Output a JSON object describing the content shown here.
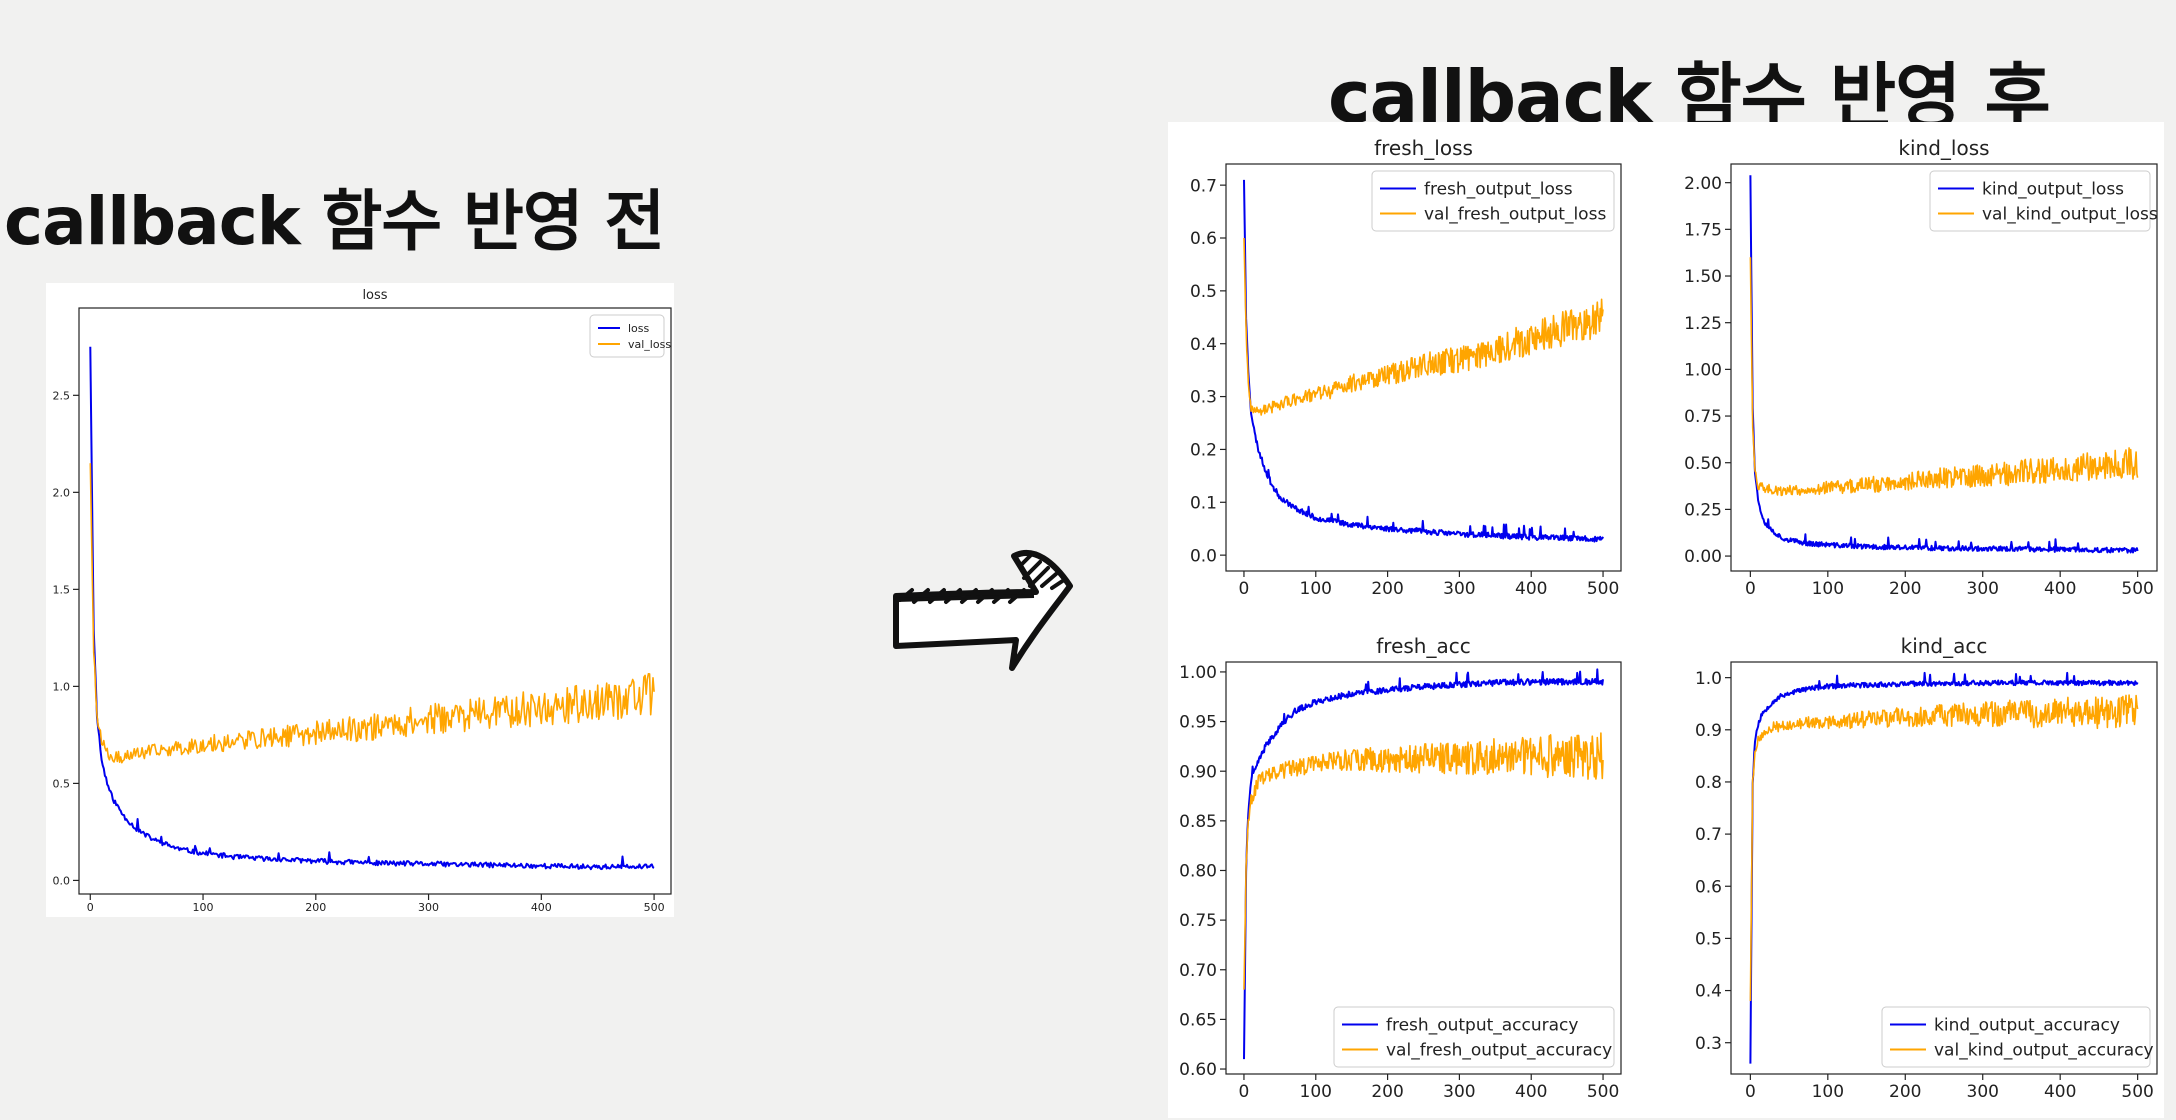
{
  "headings": {
    "before": "callback 함수 반영 전",
    "after": "callback 함수 반영 후"
  },
  "icons": {
    "arrow": "right-arrow-icon"
  },
  "colors": {
    "train": "#0000ee",
    "val": "#ffa500",
    "axis": "#222222",
    "text": "#222222"
  },
  "chart_data": [
    {
      "type": "line",
      "title": "loss",
      "xlabel": "",
      "ylabel": "",
      "xlim": [
        -10,
        515
      ],
      "ylim": [
        -0.07,
        2.95
      ],
      "xticks": [
        0,
        100,
        200,
        300,
        400,
        500
      ],
      "yticks": [
        0.0,
        0.5,
        1.0,
        1.5,
        2.0,
        2.5
      ],
      "ytick_labels": [
        "0.0",
        "0.5",
        "1.0",
        "1.5",
        "2.0",
        "2.5"
      ],
      "legend": "top-right",
      "series": [
        {
          "name": "loss",
          "color": "#0000ee",
          "x": [
            0,
            3,
            6,
            10,
            15,
            20,
            30,
            40,
            50,
            60,
            80,
            100,
            130,
            160,
            200,
            250,
            300,
            350,
            400,
            450,
            500
          ],
          "values": [
            2.75,
            1.3,
            0.85,
            0.62,
            0.5,
            0.42,
            0.33,
            0.27,
            0.23,
            0.2,
            0.16,
            0.14,
            0.12,
            0.11,
            0.1,
            0.09,
            0.085,
            0.08,
            0.075,
            0.07,
            0.07
          ]
        },
        {
          "name": "val_loss",
          "color": "#ffa500",
          "x": [
            0,
            3,
            6,
            10,
            15,
            20,
            30,
            50,
            100,
            150,
            200,
            250,
            300,
            350,
            400,
            450,
            500
          ],
          "values": [
            2.15,
            1.2,
            0.85,
            0.72,
            0.66,
            0.63,
            0.64,
            0.66,
            0.7,
            0.73,
            0.76,
            0.79,
            0.83,
            0.86,
            0.89,
            0.92,
            0.96
          ]
        }
      ]
    },
    {
      "type": "line",
      "title": "fresh_loss",
      "xlabel": "",
      "ylabel": "",
      "xlim": [
        -25,
        525
      ],
      "ylim": [
        -0.03,
        0.74
      ],
      "xticks": [
        0,
        100,
        200,
        300,
        400,
        500
      ],
      "yticks": [
        0.0,
        0.1,
        0.2,
        0.3,
        0.4,
        0.5,
        0.6,
        0.7
      ],
      "ytick_labels": [
        "0.0",
        "0.1",
        "0.2",
        "0.3",
        "0.4",
        "0.5",
        "0.6",
        "0.7"
      ],
      "legend": "top-right",
      "series": [
        {
          "name": "fresh_output_loss",
          "color": "#0000ee",
          "x": [
            0,
            3,
            6,
            10,
            15,
            20,
            30,
            40,
            50,
            70,
            100,
            150,
            200,
            250,
            300,
            350,
            400,
            450,
            500
          ],
          "values": [
            0.71,
            0.45,
            0.35,
            0.27,
            0.23,
            0.2,
            0.16,
            0.13,
            0.11,
            0.09,
            0.07,
            0.058,
            0.05,
            0.045,
            0.04,
            0.037,
            0.034,
            0.032,
            0.03
          ]
        },
        {
          "name": "val_fresh_output_loss",
          "color": "#ffa500",
          "x": [
            0,
            3,
            6,
            10,
            20,
            40,
            80,
            120,
            160,
            200,
            250,
            300,
            350,
            400,
            450,
            500
          ],
          "values": [
            0.6,
            0.42,
            0.33,
            0.28,
            0.27,
            0.28,
            0.3,
            0.31,
            0.33,
            0.34,
            0.36,
            0.37,
            0.39,
            0.41,
            0.43,
            0.45
          ]
        }
      ]
    },
    {
      "type": "line",
      "title": "kind_loss",
      "xlabel": "",
      "ylabel": "",
      "xlim": [
        -25,
        525
      ],
      "ylim": [
        -0.08,
        2.1
      ],
      "xticks": [
        0,
        100,
        200,
        300,
        400,
        500
      ],
      "yticks": [
        0.0,
        0.25,
        0.5,
        0.75,
        1.0,
        1.25,
        1.5,
        1.75,
        2.0
      ],
      "ytick_labels": [
        "0.00",
        "0.25",
        "0.50",
        "0.75",
        "1.00",
        "1.25",
        "1.50",
        "1.75",
        "2.00"
      ],
      "legend": "top-right",
      "series": [
        {
          "name": "kind_output_loss",
          "color": "#0000ee",
          "x": [
            0,
            3,
            6,
            10,
            15,
            20,
            30,
            40,
            50,
            70,
            100,
            150,
            200,
            300,
            400,
            500
          ],
          "values": [
            2.04,
            0.8,
            0.45,
            0.3,
            0.22,
            0.17,
            0.13,
            0.1,
            0.085,
            0.07,
            0.06,
            0.05,
            0.045,
            0.04,
            0.035,
            0.03
          ]
        },
        {
          "name": "val_kind_output_loss",
          "color": "#ffa500",
          "x": [
            0,
            3,
            6,
            10,
            20,
            40,
            80,
            150,
            200,
            250,
            300,
            350,
            400,
            450,
            500
          ],
          "values": [
            1.6,
            0.7,
            0.45,
            0.38,
            0.36,
            0.35,
            0.36,
            0.38,
            0.4,
            0.42,
            0.43,
            0.45,
            0.47,
            0.49,
            0.5
          ]
        }
      ]
    },
    {
      "type": "line",
      "title": "fresh_acc",
      "xlabel": "",
      "ylabel": "",
      "xlim": [
        -25,
        525
      ],
      "ylim": [
        0.595,
        1.01
      ],
      "xticks": [
        0,
        100,
        200,
        300,
        400,
        500
      ],
      "yticks": [
        0.6,
        0.65,
        0.7,
        0.75,
        0.8,
        0.85,
        0.9,
        0.95,
        1.0
      ],
      "ytick_labels": [
        "0.60",
        "0.65",
        "0.70",
        "0.75",
        "0.80",
        "0.85",
        "0.90",
        "0.95",
        "1.00"
      ],
      "legend": "bottom-right",
      "series": [
        {
          "name": "fresh_output_accuracy",
          "color": "#0000ee",
          "x": [
            0,
            3,
            6,
            10,
            15,
            20,
            30,
            40,
            50,
            70,
            100,
            150,
            200,
            250,
            300,
            350,
            400,
            450,
            500
          ],
          "values": [
            0.61,
            0.8,
            0.86,
            0.89,
            0.9,
            0.91,
            0.925,
            0.935,
            0.945,
            0.96,
            0.97,
            0.978,
            0.982,
            0.985,
            0.987,
            0.989,
            0.99,
            0.99,
            0.99
          ]
        },
        {
          "name": "val_fresh_output_accuracy",
          "color": "#ffa500",
          "x": [
            0,
            3,
            6,
            10,
            15,
            20,
            30,
            50,
            80,
            120,
            200,
            300,
            400,
            500
          ],
          "values": [
            0.68,
            0.8,
            0.85,
            0.87,
            0.88,
            0.89,
            0.895,
            0.9,
            0.905,
            0.91,
            0.912,
            0.914,
            0.915,
            0.915
          ]
        }
      ]
    },
    {
      "type": "line",
      "title": "kind_acc",
      "xlabel": "",
      "ylabel": "",
      "xlim": [
        -25,
        525
      ],
      "ylim": [
        0.24,
        1.03
      ],
      "xticks": [
        0,
        100,
        200,
        300,
        400,
        500
      ],
      "yticks": [
        0.3,
        0.4,
        0.5,
        0.6,
        0.7,
        0.8,
        0.9,
        1.0
      ],
      "ytick_labels": [
        "0.3",
        "0.4",
        "0.5",
        "0.6",
        "0.7",
        "0.8",
        "0.9",
        "1.0"
      ],
      "legend": "bottom-right",
      "series": [
        {
          "name": "kind_output_accuracy",
          "color": "#0000ee",
          "x": [
            0,
            3,
            6,
            10,
            15,
            20,
            30,
            40,
            50,
            70,
            100,
            150,
            200,
            300,
            400,
            500
          ],
          "values": [
            0.26,
            0.8,
            0.88,
            0.91,
            0.93,
            0.94,
            0.955,
            0.965,
            0.97,
            0.978,
            0.983,
            0.986,
            0.988,
            0.99,
            0.99,
            0.99
          ]
        },
        {
          "name": "val_kind_output_accuracy",
          "color": "#ffa500",
          "x": [
            0,
            3,
            6,
            10,
            15,
            20,
            30,
            50,
            100,
            200,
            300,
            400,
            500
          ],
          "values": [
            0.38,
            0.8,
            0.86,
            0.88,
            0.89,
            0.9,
            0.905,
            0.91,
            0.915,
            0.925,
            0.93,
            0.932,
            0.935
          ]
        }
      ]
    }
  ]
}
